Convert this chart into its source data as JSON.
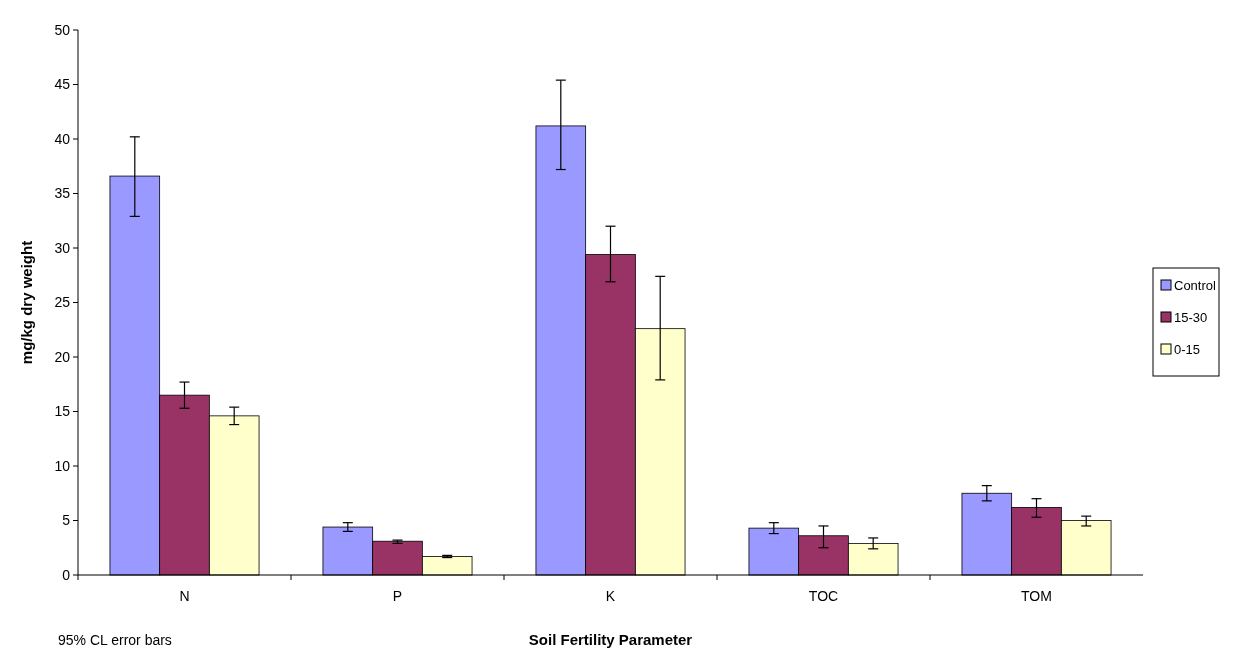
{
  "chart_data": {
    "type": "bar",
    "xlabel": "Soil Fertility Parameter",
    "ylabel": "mg/kg dry weight",
    "categories": [
      "N",
      "P",
      "K",
      "TOC",
      "TOM"
    ],
    "series": [
      {
        "name": "Control",
        "color": "#9999ff",
        "values": [
          36.6,
          4.4,
          41.2,
          4.3,
          7.5
        ],
        "errors": [
          [
            32.9,
            40.2
          ],
          [
            4.0,
            4.8
          ],
          [
            37.2,
            45.4
          ],
          [
            3.8,
            4.8
          ],
          [
            6.8,
            8.2
          ]
        ]
      },
      {
        "name": "15-30",
        "color": "#993366",
        "values": [
          16.5,
          3.1,
          29.4,
          3.6,
          6.2
        ],
        "errors": [
          [
            15.3,
            17.7
          ],
          [
            2.9,
            3.2
          ],
          [
            26.9,
            32.0
          ],
          [
            2.5,
            4.5
          ],
          [
            5.3,
            7.0
          ]
        ]
      },
      {
        "name": "0-15",
        "color": "#ffffcc",
        "values": [
          14.6,
          1.7,
          22.6,
          2.9,
          5.0
        ],
        "errors": [
          [
            13.8,
            15.4
          ],
          [
            1.6,
            1.8
          ],
          [
            17.9,
            27.4
          ],
          [
            2.4,
            3.4
          ],
          [
            4.5,
            5.4
          ]
        ]
      }
    ],
    "ylim": [
      0,
      50
    ],
    "yticks": [
      0,
      5,
      10,
      15,
      20,
      25,
      30,
      35,
      40,
      45,
      50
    ],
    "legend": "right",
    "annotations": [
      "95% CL error bars"
    ]
  }
}
